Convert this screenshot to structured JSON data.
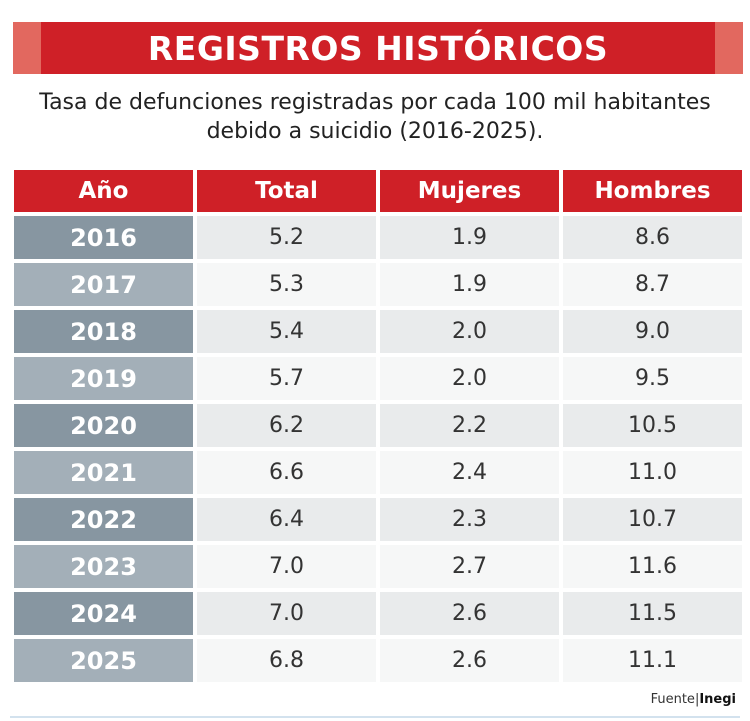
{
  "title": "REGISTROS HISTÓRICOS",
  "subtitle_line1": "Tasa de defunciones registradas por cada 100 mil habitantes",
  "subtitle_line2": "debido a suicidio (2016-2025).",
  "source_label": "Fuente",
  "source_name": "Inegi",
  "colors": {
    "header_red": "#cf2027",
    "banner_cap": "#e2685f",
    "year_cell_dark": "#8796a1",
    "year_cell_light": "#a3afb8"
  },
  "chart_data": {
    "type": "table",
    "columns": [
      "Año",
      "Total",
      "Mujeres",
      "Hombres"
    ],
    "rows": [
      [
        "2016",
        "5.2",
        "1.9",
        "8.6"
      ],
      [
        "2017",
        "5.3",
        "1.9",
        "8.7"
      ],
      [
        "2018",
        "5.4",
        "2.0",
        "9.0"
      ],
      [
        "2019",
        "5.7",
        "2.0",
        "9.5"
      ],
      [
        "2020",
        "6.2",
        "2.2",
        "10.5"
      ],
      [
        "2021",
        "6.6",
        "2.4",
        "11.0"
      ],
      [
        "2022",
        "6.4",
        "2.3",
        "10.7"
      ],
      [
        "2023",
        "7.0",
        "2.7",
        "11.6"
      ],
      [
        "2024",
        "7.0",
        "2.6",
        "11.5"
      ],
      [
        "2025",
        "6.8",
        "2.6",
        "11.1"
      ]
    ]
  }
}
